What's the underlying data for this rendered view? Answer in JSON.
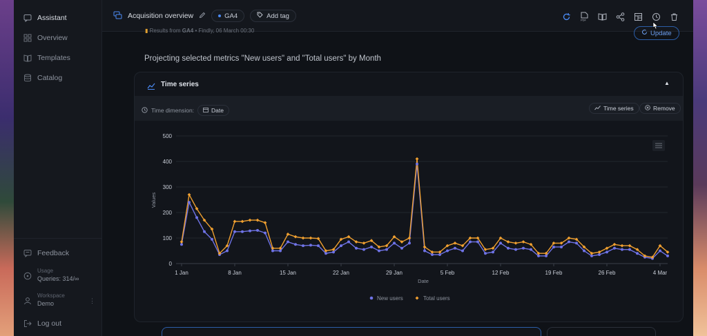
{
  "sidebar": {
    "items": [
      {
        "label": "Assistant",
        "icon": "chat-icon"
      },
      {
        "label": "Overview",
        "icon": "grid-icon"
      },
      {
        "label": "Templates",
        "icon": "book-icon"
      },
      {
        "label": "Catalog",
        "icon": "database-icon"
      }
    ],
    "feedback": "Feedback",
    "usage_label": "Usage",
    "usage_value": "Queries: 314/∞",
    "workspace_label": "Workspace",
    "workspace_value": "Demo",
    "logout": "Log out"
  },
  "header": {
    "title": "Acquisition overview",
    "source_pill": "GA4",
    "add_tag": "Add tag",
    "results_prefix": "Results from",
    "results_source": "GA4",
    "results_rest": "• Findly, 06 March 00:30",
    "update": "Update",
    "toolbar_icons": [
      "refresh-icon",
      "pdf-icon",
      "book-open-icon",
      "share-icon",
      "layout-icon",
      "history-icon",
      "trash-icon"
    ]
  },
  "main": {
    "heading": "Projecting selected metrics \"New users\" and \"Total users\" by Month"
  },
  "card": {
    "title": "Time series",
    "time_dimension_label": "Time dimension:",
    "time_dimension_value": "Date",
    "chart_type_button": "Time series",
    "remove_button": "Remove"
  },
  "colors": {
    "new_users": "#6f73e6",
    "total_users": "#f0a030",
    "accent": "#4b8bf5"
  },
  "chart_data": {
    "type": "line",
    "xlabel": "Date",
    "ylabel": "Values",
    "ylim": [
      0,
      500
    ],
    "yticks": [
      "0",
      "100",
      "200",
      "300",
      "400",
      "500"
    ],
    "x_tick_labels": [
      "1 Jan",
      "8 Jan",
      "15 Jan",
      "22 Jan",
      "29 Jan",
      "5 Feb",
      "12 Feb",
      "19 Feb",
      "26 Feb",
      "4 Mar"
    ],
    "x_tick_index": [
      0,
      7,
      14,
      21,
      28,
      35,
      42,
      49,
      56,
      63
    ],
    "legend_position": "bottom",
    "series": [
      {
        "name": "New users",
        "values": [
          75,
          240,
          180,
          125,
          95,
          35,
          50,
          125,
          125,
          128,
          130,
          120,
          50,
          50,
          85,
          75,
          70,
          72,
          70,
          40,
          45,
          70,
          85,
          60,
          55,
          65,
          50,
          55,
          80,
          60,
          80,
          390,
          50,
          35,
          35,
          50,
          60,
          50,
          85,
          85,
          40,
          45,
          80,
          60,
          55,
          60,
          55,
          30,
          30,
          65,
          65,
          85,
          80,
          50,
          30,
          35,
          45,
          60,
          55,
          55,
          40,
          25,
          20,
          50,
          30
        ]
      },
      {
        "name": "Total users",
        "values": [
          85,
          270,
          215,
          170,
          135,
          40,
          70,
          165,
          165,
          170,
          170,
          160,
          60,
          60,
          115,
          105,
          100,
          100,
          98,
          50,
          55,
          95,
          105,
          85,
          80,
          90,
          65,
          70,
          105,
          85,
          100,
          410,
          65,
          45,
          45,
          70,
          80,
          70,
          100,
          100,
          55,
          60,
          100,
          85,
          80,
          85,
          75,
          40,
          40,
          80,
          80,
          100,
          95,
          65,
          40,
          45,
          60,
          75,
          70,
          70,
          55,
          30,
          25,
          70,
          45
        ]
      }
    ]
  }
}
